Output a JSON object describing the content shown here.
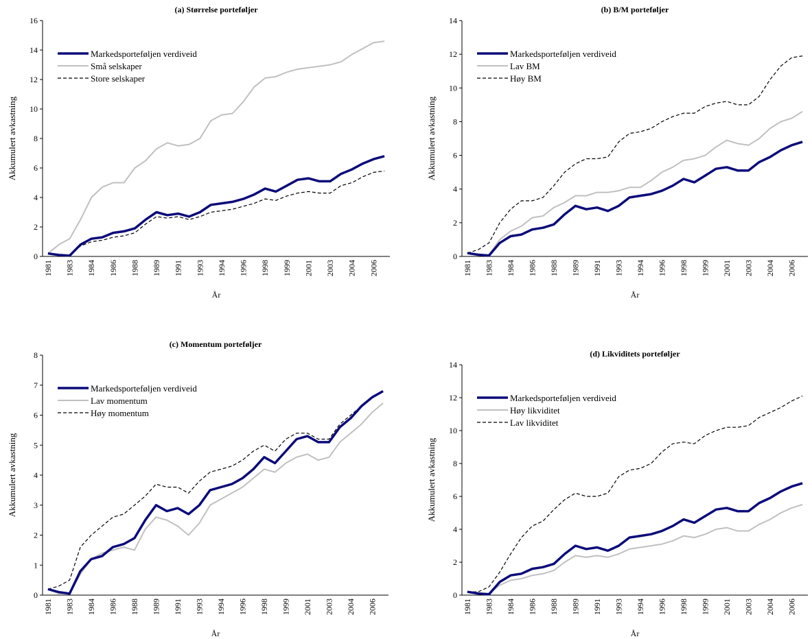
{
  "chart_data": [
    {
      "type": "line",
      "title": "(a) Størrelse porteføljer",
      "x_label": "År",
      "y_label": "Akkumulert avkastning",
      "categories": [
        "1981",
        null,
        "1983",
        null,
        "1984",
        null,
        "1986",
        null,
        "1988",
        null,
        "1989",
        null,
        "1991",
        null,
        "1993",
        null,
        "1994",
        null,
        "1996",
        null,
        "1998",
        null,
        "1999",
        null,
        "2001",
        null,
        "2003",
        null,
        "2004",
        null,
        "2006",
        null
      ],
      "ylim": [
        0,
        16
      ],
      "yticks": [
        0,
        2,
        4,
        6,
        8,
        10,
        12,
        14,
        16
      ],
      "legend": "upper left",
      "series": [
        {
          "name": "Markedsporteføljen verdiveid",
          "color": "#0b0b7a",
          "style": "thick",
          "values": [
            0.2,
            0.1,
            0.05,
            0.8,
            1.2,
            1.3,
            1.6,
            1.7,
            1.9,
            2.5,
            3.0,
            2.8,
            2.9,
            2.7,
            3.0,
            3.5,
            3.6,
            3.7,
            3.9,
            4.2,
            4.6,
            4.4,
            4.8,
            5.2,
            5.3,
            5.1,
            5.1,
            5.6,
            5.9,
            6.3,
            6.6,
            6.8
          ]
        },
        {
          "name": "Små selskaper",
          "color": "#c0c0c0",
          "style": "solid",
          "values": [
            0.2,
            0.8,
            1.2,
            2.5,
            4.0,
            4.7,
            5.0,
            5.0,
            6.0,
            6.5,
            7.3,
            7.7,
            7.5,
            7.6,
            8.0,
            9.2,
            9.6,
            9.7,
            10.5,
            11.5,
            12.1,
            12.2,
            12.5,
            12.7,
            12.8,
            12.9,
            13.0,
            13.2,
            13.7,
            14.1,
            14.5,
            14.6
          ]
        },
        {
          "name": "Store selskaper",
          "color": "#000000",
          "style": "dashed",
          "values": [
            0.2,
            0.1,
            0.1,
            0.7,
            1.0,
            1.1,
            1.3,
            1.4,
            1.6,
            2.2,
            2.7,
            2.6,
            2.7,
            2.5,
            2.7,
            3.0,
            3.1,
            3.2,
            3.4,
            3.6,
            3.9,
            3.8,
            4.1,
            4.3,
            4.4,
            4.3,
            4.3,
            4.8,
            5.0,
            5.4,
            5.7,
            5.8
          ]
        }
      ]
    },
    {
      "type": "line",
      "title": "(b) B/M porteføljer",
      "x_label": "År",
      "y_label": "Akkumulert avkastning",
      "categories": [
        "1981",
        null,
        "1983",
        null,
        "1984",
        null,
        "1986",
        null,
        "1988",
        null,
        "1989",
        null,
        "1991",
        null,
        "1993",
        null,
        "1994",
        null,
        "1996",
        null,
        "1998",
        null,
        "1999",
        null,
        "2001",
        null,
        "2003",
        null,
        "2004",
        null,
        "2006",
        null
      ],
      "ylim": [
        0,
        14
      ],
      "yticks": [
        0,
        2,
        4,
        6,
        8,
        10,
        12,
        14
      ],
      "legend": "upper left",
      "series": [
        {
          "name": "Markedsporteføljen verdiveid",
          "color": "#0b0b7a",
          "style": "thick",
          "values": [
            0.2,
            0.1,
            0.05,
            0.8,
            1.2,
            1.3,
            1.6,
            1.7,
            1.9,
            2.5,
            3.0,
            2.8,
            2.9,
            2.7,
            3.0,
            3.5,
            3.6,
            3.7,
            3.9,
            4.2,
            4.6,
            4.4,
            4.8,
            5.2,
            5.3,
            5.1,
            5.1,
            5.6,
            5.9,
            6.3,
            6.6,
            6.8
          ]
        },
        {
          "name": "Lav BM",
          "color": "#c0c0c0",
          "style": "solid",
          "values": [
            0.2,
            0.1,
            0.1,
            1.0,
            1.5,
            1.8,
            2.3,
            2.4,
            2.9,
            3.2,
            3.6,
            3.6,
            3.8,
            3.8,
            3.9,
            4.1,
            4.1,
            4.5,
            5.0,
            5.3,
            5.7,
            5.8,
            6.0,
            6.5,
            6.9,
            6.7,
            6.6,
            7.0,
            7.6,
            8.0,
            8.2,
            8.6
          ]
        },
        {
          "name": "Høy BM",
          "color": "#000000",
          "style": "dashed",
          "values": [
            0.2,
            0.4,
            0.8,
            2.0,
            2.8,
            3.3,
            3.3,
            3.5,
            4.2,
            5.0,
            5.5,
            5.8,
            5.8,
            5.9,
            6.8,
            7.3,
            7.4,
            7.6,
            8.0,
            8.3,
            8.5,
            8.5,
            8.9,
            9.1,
            9.2,
            9.0,
            9.0,
            9.5,
            10.5,
            11.3,
            11.8,
            11.9
          ]
        }
      ]
    },
    {
      "type": "line",
      "title": "(c) Momentum porteføljer",
      "x_label": "År",
      "y_label": "Akkumulert avkastning",
      "categories": [
        "1981",
        null,
        "1983",
        null,
        "1984",
        null,
        "1986",
        null,
        "1988",
        null,
        "1989",
        null,
        "1991",
        null,
        "1993",
        null,
        "1994",
        null,
        "1996",
        null,
        "1998",
        null,
        "1999",
        null,
        "2001",
        null,
        "2003",
        null,
        "2004",
        null,
        "2006",
        null
      ],
      "ylim": [
        0,
        8
      ],
      "yticks": [
        0,
        1,
        2,
        3,
        4,
        5,
        6,
        7,
        8
      ],
      "legend": "upper left",
      "series": [
        {
          "name": "Markedsporteføljen verdiveid",
          "color": "#0b0b7a",
          "style": "thick",
          "values": [
            0.2,
            0.1,
            0.05,
            0.8,
            1.2,
            1.3,
            1.6,
            1.7,
            1.9,
            2.5,
            3.0,
            2.8,
            2.9,
            2.7,
            3.0,
            3.5,
            3.6,
            3.7,
            3.9,
            4.2,
            4.6,
            4.4,
            4.8,
            5.2,
            5.3,
            5.1,
            5.1,
            5.6,
            5.9,
            6.3,
            6.6,
            6.8
          ]
        },
        {
          "name": "Lav momentum",
          "color": "#c0c0c0",
          "style": "solid",
          "values": [
            0.2,
            0.05,
            0.05,
            0.7,
            1.2,
            1.4,
            1.5,
            1.6,
            1.5,
            2.2,
            2.6,
            2.5,
            2.3,
            2.0,
            2.4,
            3.0,
            3.2,
            3.4,
            3.6,
            3.9,
            4.2,
            4.1,
            4.4,
            4.6,
            4.7,
            4.5,
            4.6,
            5.1,
            5.4,
            5.7,
            6.1,
            6.4
          ]
        },
        {
          "name": "Høy momentum",
          "color": "#000000",
          "style": "dashed",
          "values": [
            0.2,
            0.3,
            0.5,
            1.6,
            2.0,
            2.3,
            2.6,
            2.7,
            3.0,
            3.3,
            3.7,
            3.6,
            3.6,
            3.4,
            3.8,
            4.1,
            4.2,
            4.3,
            4.5,
            4.8,
            5.0,
            4.8,
            5.2,
            5.4,
            5.4,
            5.2,
            5.2,
            5.7,
            6.0,
            6.3,
            6.6,
            6.8
          ]
        }
      ]
    },
    {
      "type": "line",
      "title": "(d) Likviditets porteføljer",
      "x_label": "År",
      "y_label": "Akkumulert avkastning",
      "categories": [
        "1981",
        null,
        "1983",
        null,
        "1984",
        null,
        "1986",
        null,
        "1988",
        null,
        "1989",
        null,
        "1991",
        null,
        "1993",
        null,
        "1994",
        null,
        "1996",
        null,
        "1998",
        null,
        "1999",
        null,
        "2001",
        null,
        "2003",
        null,
        "2004",
        null,
        "2006",
        null
      ],
      "ylim": [
        0,
        14
      ],
      "yticks": [
        0,
        2,
        4,
        6,
        8,
        10,
        12,
        14
      ],
      "legend": "upper left",
      "series": [
        {
          "name": "Markedsporteføljen verdiveid",
          "color": "#0b0b7a",
          "style": "thick",
          "values": [
            0.2,
            0.1,
            0.05,
            0.8,
            1.2,
            1.3,
            1.6,
            1.7,
            1.9,
            2.5,
            3.0,
            2.8,
            2.9,
            2.7,
            3.0,
            3.5,
            3.6,
            3.7,
            3.9,
            4.2,
            4.6,
            4.4,
            4.8,
            5.2,
            5.3,
            5.1,
            5.1,
            5.6,
            5.9,
            6.3,
            6.6,
            6.8
          ]
        },
        {
          "name": "Høy likviditet",
          "color": "#c0c0c0",
          "style": "solid",
          "values": [
            0.2,
            0.1,
            0.1,
            0.6,
            0.9,
            1.0,
            1.2,
            1.3,
            1.5,
            2.0,
            2.4,
            2.3,
            2.4,
            2.3,
            2.5,
            2.8,
            2.9,
            3.0,
            3.1,
            3.3,
            3.6,
            3.5,
            3.7,
            4.0,
            4.1,
            3.9,
            3.9,
            4.3,
            4.6,
            5.0,
            5.3,
            5.5
          ]
        },
        {
          "name": "Lav likviditet",
          "color": "#000000",
          "style": "dashed",
          "values": [
            0.2,
            0.2,
            0.5,
            1.4,
            2.5,
            3.5,
            4.2,
            4.5,
            5.2,
            5.8,
            6.2,
            6.0,
            6.0,
            6.2,
            7.2,
            7.6,
            7.7,
            8.0,
            8.7,
            9.2,
            9.3,
            9.2,
            9.7,
            10.0,
            10.2,
            10.2,
            10.3,
            10.8,
            11.1,
            11.4,
            11.8,
            12.1
          ]
        }
      ]
    }
  ]
}
